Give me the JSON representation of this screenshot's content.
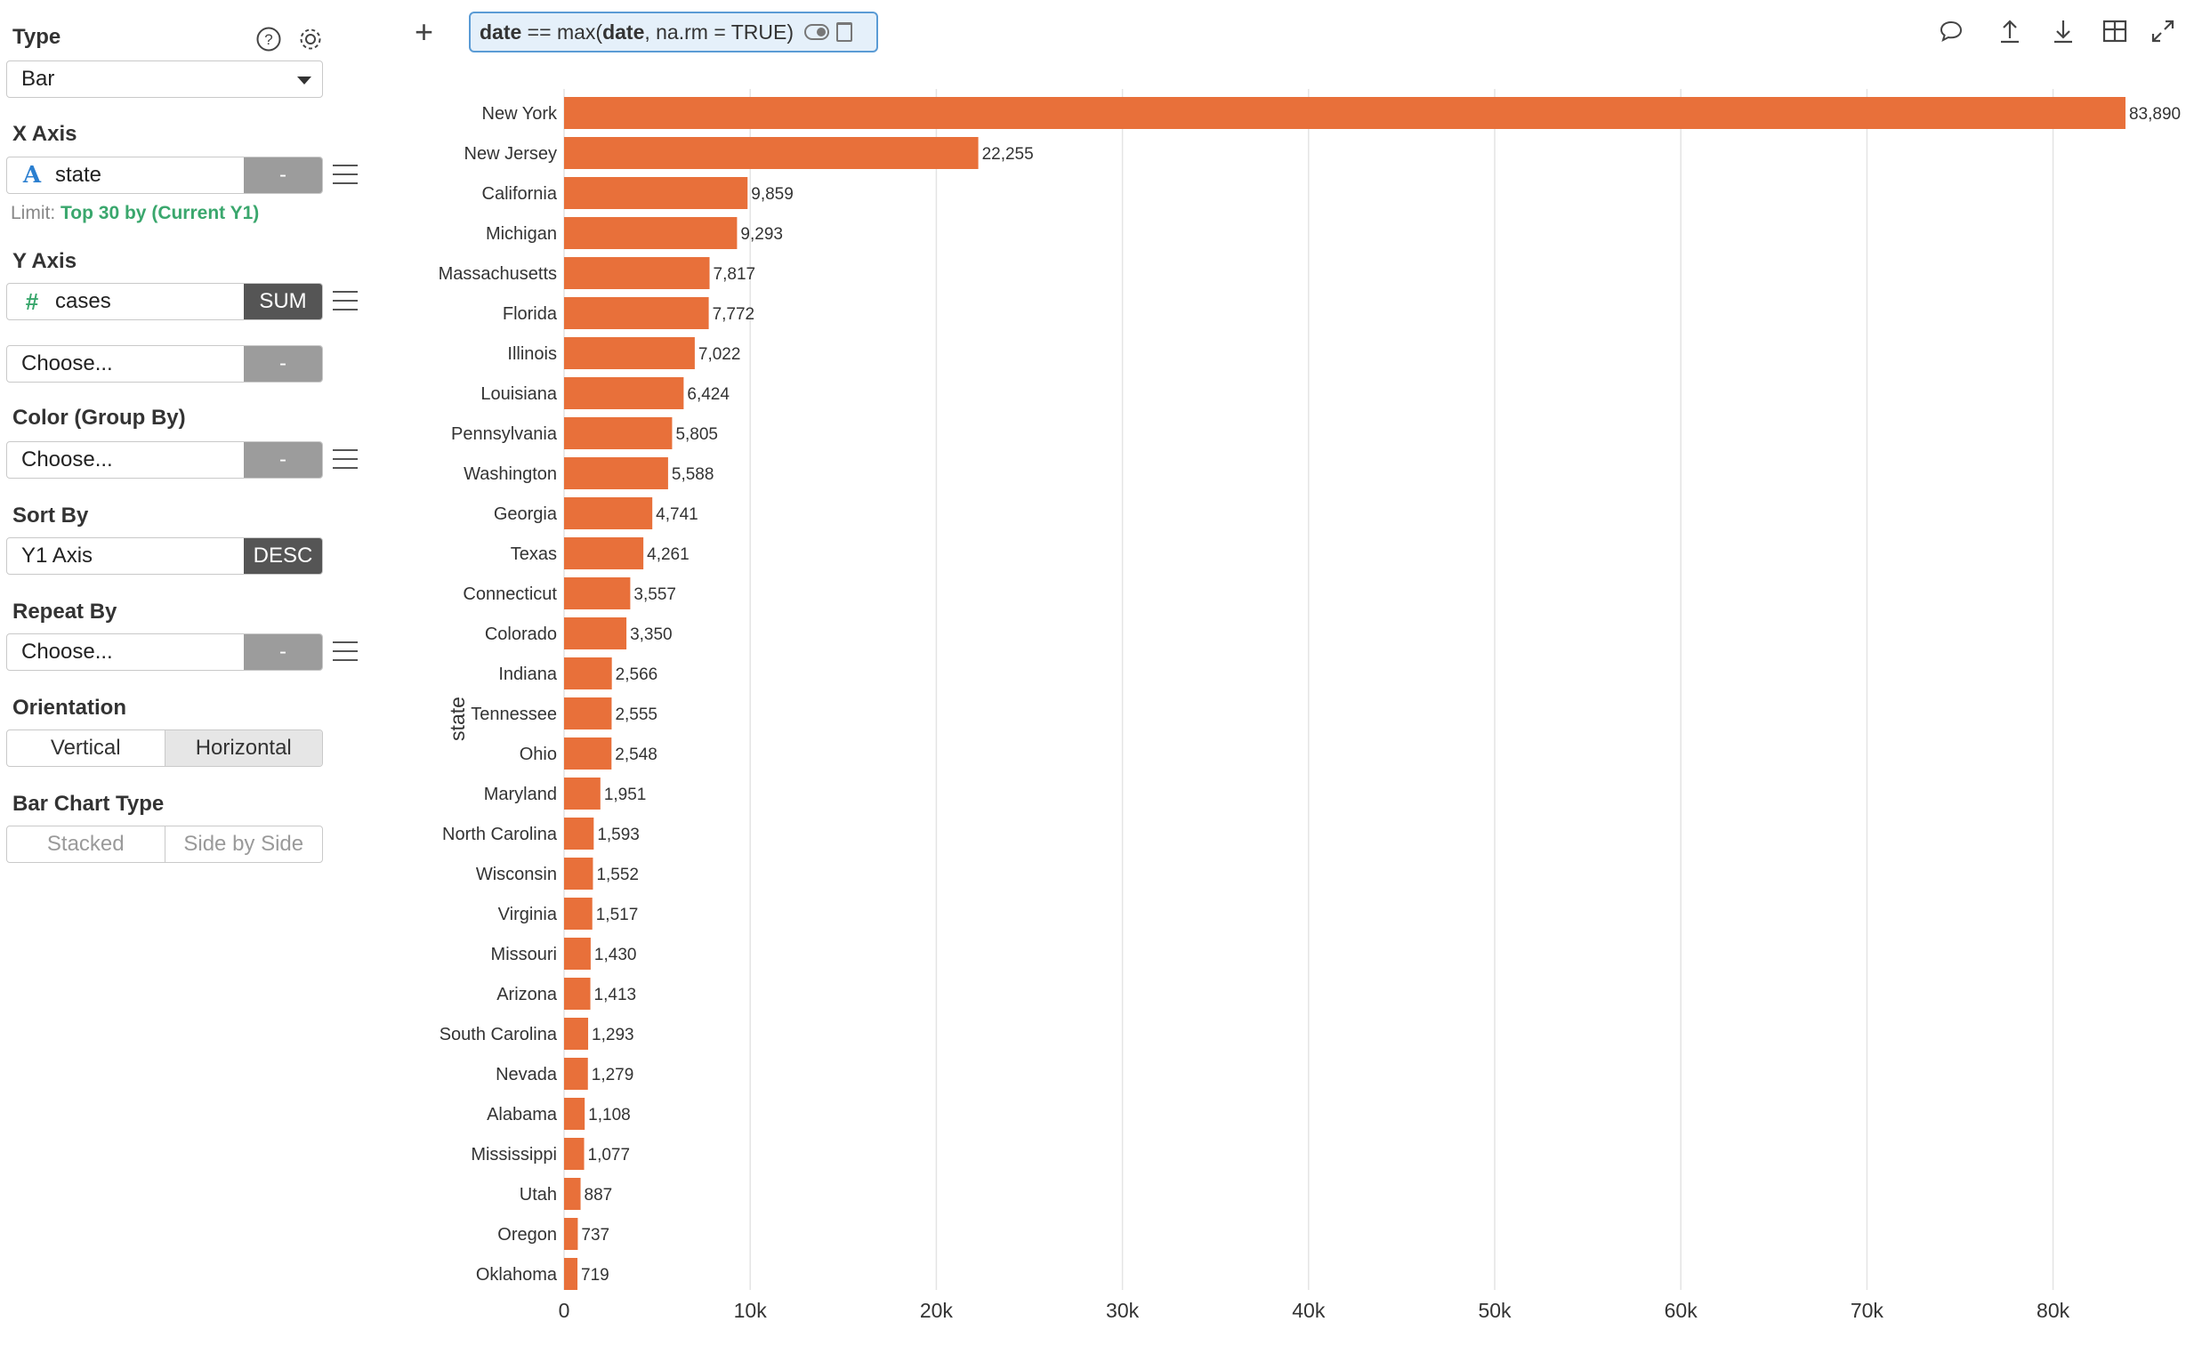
{
  "sidebar": {
    "type": {
      "title": "Type",
      "value": "Bar"
    },
    "x_axis": {
      "title": "X Axis",
      "type_icon": "A",
      "field": "state",
      "button": "-",
      "limit_prefix": "Limit:",
      "limit_value": "Top 30 by (Current Y1)"
    },
    "y_axis": {
      "title": "Y Axis",
      "type_icon": "#",
      "field": "cases",
      "button": "SUM",
      "choose": "Choose...",
      "choose_button": "-"
    },
    "color": {
      "title": "Color (Group By)",
      "choose": "Choose...",
      "button": "-"
    },
    "sort": {
      "title": "Sort By",
      "field": "Y1 Axis",
      "button": "DESC"
    },
    "repeat": {
      "title": "Repeat By",
      "choose": "Choose...",
      "button": "-"
    },
    "orientation": {
      "title": "Orientation",
      "options": [
        "Vertical",
        "Horizontal"
      ],
      "selected": "Horizontal"
    },
    "bar_type": {
      "title": "Bar Chart Type",
      "options": [
        "Stacked",
        "Side by Side"
      ]
    }
  },
  "toolbar": {
    "add": "+",
    "filter_parts": [
      "date",
      " == max(",
      "date",
      ", na.rm = TRUE)"
    ],
    "icons": [
      "comment-icon",
      "export-icon",
      "download-icon",
      "table-icon",
      "expand-icon"
    ]
  },
  "colors": {
    "bar": "#e8703a",
    "accent": "#3aa76d",
    "chip_border": "#5a9bd5"
  },
  "chart_data": {
    "type": "bar",
    "orientation": "horizontal",
    "ylabel": "state",
    "categories": [
      "New York",
      "New Jersey",
      "California",
      "Michigan",
      "Massachusetts",
      "Florida",
      "Illinois",
      "Louisiana",
      "Pennsylvania",
      "Washington",
      "Georgia",
      "Texas",
      "Connecticut",
      "Colorado",
      "Indiana",
      "Tennessee",
      "Ohio",
      "Maryland",
      "North Carolina",
      "Wisconsin",
      "Virginia",
      "Missouri",
      "Arizona",
      "South Carolina",
      "Nevada",
      "Alabama",
      "Mississippi",
      "Utah",
      "Oregon",
      "Oklahoma"
    ],
    "values": [
      83890,
      22255,
      9859,
      9293,
      7817,
      7772,
      7022,
      6424,
      5805,
      5588,
      4741,
      4261,
      3557,
      3350,
      2566,
      2555,
      2548,
      1951,
      1593,
      1552,
      1517,
      1430,
      1413,
      1293,
      1279,
      1108,
      1077,
      887,
      737,
      719
    ],
    "value_labels": [
      "83,890",
      "22,255",
      "9,859",
      "9,293",
      "7,817",
      "7,772",
      "7,022",
      "6,424",
      "5,805",
      "5,588",
      "4,741",
      "4,261",
      "3,557",
      "3,350",
      "2,566",
      "2,555",
      "2,548",
      "1,951",
      "1,593",
      "1,552",
      "1,517",
      "1,430",
      "1,413",
      "1,293",
      "1,279",
      "1,108",
      "1,077",
      "887",
      "737",
      "719"
    ],
    "xlim": [
      0,
      86000
    ],
    "xticks": [
      0,
      10000,
      20000,
      30000,
      40000,
      50000,
      60000,
      70000,
      80000
    ],
    "xtick_labels": [
      "0",
      "10k",
      "20k",
      "30k",
      "40k",
      "50k",
      "60k",
      "70k",
      "80k"
    ],
    "grid": true
  }
}
